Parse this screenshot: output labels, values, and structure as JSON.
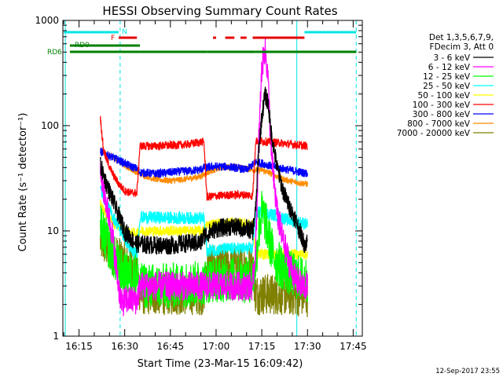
{
  "chart_data": {
    "type": "line",
    "title": "HESSI Observing Summary Count Rates",
    "xlabel": "Start Time (23-Mar-15 16:09:42)",
    "ylabel": "Count Rate (s⁻¹ detector⁻¹)",
    "y_scale": "log",
    "ylim": [
      1,
      1000
    ],
    "xlim": [
      "16:09:42",
      "17:48:00"
    ],
    "x_ticks": [
      "16:15",
      "16:30",
      "16:45",
      "17:00",
      "17:15",
      "17:30",
      "17:45"
    ],
    "y_ticks": [
      "1",
      "10",
      "100",
      "1000"
    ],
    "timestamp": "12-Sep-2017 23:55",
    "legend_header": [
      "Det 1,3,5,6,7,9,",
      "FDecim 3, Att 0"
    ],
    "legend_position": "right, outside plot",
    "flags": [
      {
        "label": "N",
        "color": "#00e6e6",
        "intervals": [
          [
            "16:10",
            "16:28"
          ],
          [
            "17:29",
            "17:46"
          ]
        ]
      },
      {
        "label": "F",
        "color": "#e60000",
        "intervals": [
          [
            "16:28",
            "16:34"
          ],
          [
            "17:12",
            "17:29"
          ],
          [
            "16:59",
            "17:00"
          ],
          [
            "17:03",
            "17:06"
          ],
          [
            "17:08",
            "17:10"
          ]
        ]
      },
      {
        "label": "RD0",
        "color": "#008000",
        "intervals": [
          [
            "16:12",
            "16:35"
          ]
        ]
      },
      {
        "label": "RD6",
        "color": "#008000",
        "intervals": [
          [
            "16:12",
            "16:35"
          ],
          [
            "16:35",
            "16:57"
          ],
          [
            "16:57",
            "17:13"
          ],
          [
            "17:13",
            "17:46"
          ]
        ]
      }
    ],
    "vlines": [
      {
        "time": "16:10:30",
        "color": "#00e6e6",
        "style": "solid"
      },
      {
        "time": "16:28:30",
        "color": "#00e6e6",
        "style": "dashed"
      },
      {
        "time": "17:26:30",
        "color": "#00e6e6",
        "style": "solid"
      },
      {
        "time": "17:46:00",
        "color": "#00e6e6",
        "style": "dashed"
      }
    ],
    "series": [
      {
        "name": "3 - 6 keV",
        "color": "#000000",
        "points": [
          [
            "16:22",
            42
          ],
          [
            "16:24",
            28
          ],
          [
            "16:26",
            20
          ],
          [
            "16:28",
            14
          ],
          [
            "16:30",
            10
          ],
          [
            "16:32",
            8.5
          ],
          [
            "16:34",
            7.5
          ],
          [
            "16:35",
            7.5
          ],
          [
            "16:40",
            7.3
          ],
          [
            "16:45",
            7.3
          ],
          [
            "16:50",
            7.6
          ],
          [
            "16:55",
            7.7
          ],
          [
            "16:56",
            9.0
          ],
          [
            "17:00",
            10.5
          ],
          [
            "17:05",
            11
          ],
          [
            "17:10",
            10.5
          ],
          [
            "17:12",
            10
          ],
          [
            "17:13",
            16
          ],
          [
            "17:14",
            60
          ],
          [
            "17:15",
            120
          ],
          [
            "17:16",
            195
          ],
          [
            "17:17",
            170
          ],
          [
            "17:18",
            90
          ],
          [
            "17:20",
            40
          ],
          [
            "17:22",
            24
          ],
          [
            "17:24",
            17
          ],
          [
            "17:26",
            13
          ],
          [
            "17:28",
            9
          ],
          [
            "17:29",
            7.5
          ],
          [
            "17:30",
            8
          ]
        ]
      },
      {
        "name": "6 - 12 keV",
        "color": "#ff00ff",
        "points": [
          [
            "16:22",
            35
          ],
          [
            "16:24",
            18
          ],
          [
            "16:26",
            9
          ],
          [
            "16:27",
            5
          ],
          [
            "16:28",
            3
          ],
          [
            "16:29",
            2
          ],
          [
            "16:30",
            2.2
          ],
          [
            "16:34",
            2.2
          ],
          [
            "16:35",
            3.0
          ],
          [
            "16:45",
            3.0
          ],
          [
            "16:56",
            3.0
          ],
          [
            "16:57",
            3.0
          ],
          [
            "17:05",
            3.0
          ],
          [
            "17:12",
            3.0
          ],
          [
            "17:13",
            7
          ],
          [
            "17:14",
            70
          ],
          [
            "17:15",
            350
          ],
          [
            "17:16",
            540
          ],
          [
            "17:17",
            300
          ],
          [
            "17:18",
            60
          ],
          [
            "17:20",
            15
          ],
          [
            "17:22",
            8
          ],
          [
            "17:24",
            5
          ],
          [
            "17:26",
            3.5
          ],
          [
            "17:28",
            3
          ],
          [
            "17:30",
            3
          ]
        ]
      },
      {
        "name": "12 - 25 keV",
        "color": "#00ff00",
        "points": [
          [
            "16:22",
            11
          ],
          [
            "16:24",
            8
          ],
          [
            "16:26",
            6
          ],
          [
            "16:28",
            4.5
          ],
          [
            "16:30",
            3.8
          ],
          [
            "16:34",
            3.8
          ],
          [
            "16:35",
            3.0
          ],
          [
            "16:45",
            3.0
          ],
          [
            "16:56",
            3.2
          ],
          [
            "16:57",
            3.4
          ],
          [
            "17:05",
            3.5
          ],
          [
            "17:12",
            3.4
          ],
          [
            "17:13",
            5
          ],
          [
            "17:14",
            10
          ],
          [
            "17:15",
            15
          ],
          [
            "17:16",
            13
          ],
          [
            "17:18",
            7
          ],
          [
            "17:20",
            5
          ],
          [
            "17:24",
            4.0
          ],
          [
            "17:28",
            3.5
          ],
          [
            "17:30",
            3.5
          ]
        ]
      },
      {
        "name": "25 - 50 keV",
        "color": "#00ffff",
        "points": [
          [
            "16:22",
            25
          ],
          [
            "16:24",
            18
          ],
          [
            "16:26",
            14
          ],
          [
            "16:28",
            11
          ],
          [
            "16:30",
            8.5
          ],
          [
            "16:32",
            6.5
          ],
          [
            "16:34",
            6.0
          ],
          [
            "16:35",
            13.5
          ],
          [
            "16:45",
            13.3
          ],
          [
            "16:56",
            13.2
          ],
          [
            "16:57",
            6.5
          ],
          [
            "17:05",
            6.8
          ],
          [
            "17:12",
            6.8
          ],
          [
            "17:13",
            15
          ],
          [
            "17:15",
            15
          ],
          [
            "17:20",
            14
          ],
          [
            "17:24",
            12.5
          ],
          [
            "17:28",
            12
          ],
          [
            "17:30",
            11.5
          ]
        ]
      },
      {
        "name": "50 - 100 keV",
        "color": "#ffff00",
        "points": [
          [
            "16:22",
            18
          ],
          [
            "16:24",
            14
          ],
          [
            "16:26",
            12
          ],
          [
            "16:28",
            11
          ],
          [
            "16:30",
            10
          ],
          [
            "16:32",
            9.5
          ],
          [
            "16:34",
            9.5
          ],
          [
            "16:35",
            10
          ],
          [
            "16:45",
            10
          ],
          [
            "16:56",
            10
          ],
          [
            "16:57",
            11.5
          ],
          [
            "17:05",
            12
          ],
          [
            "17:12",
            11.5
          ],
          [
            "17:13",
            6
          ],
          [
            "17:20",
            6
          ],
          [
            "17:30",
            6
          ]
        ]
      },
      {
        "name": "100 - 300 keV",
        "color": "#ff0000",
        "points": [
          [
            "16:22",
            120
          ],
          [
            "16:23",
            60
          ],
          [
            "16:24",
            48
          ],
          [
            "16:26",
            35
          ],
          [
            "16:28",
            28
          ],
          [
            "16:30",
            24
          ],
          [
            "16:32",
            23
          ],
          [
            "16:34",
            23
          ],
          [
            "16:35",
            64
          ],
          [
            "16:40",
            64
          ],
          [
            "16:45",
            65
          ],
          [
            "16:50",
            66
          ],
          [
            "16:55",
            70
          ],
          [
            "16:56",
            70
          ],
          [
            "16:57",
            21
          ],
          [
            "17:00",
            21.5
          ],
          [
            "17:05",
            22
          ],
          [
            "17:10",
            22
          ],
          [
            "17:12",
            21.5
          ],
          [
            "17:13",
            72
          ],
          [
            "17:18",
            70
          ],
          [
            "17:22",
            68
          ],
          [
            "17:26",
            66
          ],
          [
            "17:28",
            65
          ],
          [
            "17:30",
            64
          ]
        ]
      },
      {
        "name": "300 - 800 keV",
        "color": "#0000ff",
        "points": [
          [
            "16:22",
            57
          ],
          [
            "16:24",
            53
          ],
          [
            "16:26",
            50
          ],
          [
            "16:28",
            47
          ],
          [
            "16:30",
            44
          ],
          [
            "16:32",
            41
          ],
          [
            "16:34",
            39
          ],
          [
            "16:35",
            36
          ],
          [
            "16:40",
            35
          ],
          [
            "16:45",
            36
          ],
          [
            "16:50",
            37
          ],
          [
            "16:55",
            38
          ],
          [
            "16:56",
            40
          ],
          [
            "16:57",
            40
          ],
          [
            "17:00",
            41
          ],
          [
            "17:05",
            40.5
          ],
          [
            "17:10",
            38
          ],
          [
            "17:13",
            45
          ],
          [
            "17:15",
            44
          ],
          [
            "17:20",
            40
          ],
          [
            "17:24",
            38
          ],
          [
            "17:28",
            36
          ],
          [
            "17:30",
            35
          ]
        ]
      },
      {
        "name": "800 - 7000 keV",
        "color": "#ff8c00",
        "points": [
          [
            "16:22",
            58
          ],
          [
            "16:24",
            54
          ],
          [
            "16:26",
            50
          ],
          [
            "16:28",
            46
          ],
          [
            "16:30",
            42
          ],
          [
            "16:32",
            39
          ],
          [
            "16:34",
            36
          ],
          [
            "16:36",
            34
          ],
          [
            "16:40",
            31
          ],
          [
            "16:45",
            30
          ],
          [
            "16:50",
            31
          ],
          [
            "16:55",
            33
          ],
          [
            "16:58",
            37
          ],
          [
            "17:02",
            40
          ],
          [
            "17:06",
            41
          ],
          [
            "17:10",
            39
          ],
          [
            "17:13",
            38
          ],
          [
            "17:15",
            38
          ],
          [
            "17:18",
            35
          ],
          [
            "17:22",
            31
          ],
          [
            "17:26",
            29
          ],
          [
            "17:30",
            28
          ]
        ]
      },
      {
        "name": "7000 - 20000 keV",
        "color": "#808000",
        "points": [
          [
            "16:22",
            8
          ],
          [
            "16:24",
            7
          ],
          [
            "16:26",
            6
          ],
          [
            "16:28",
            5.5
          ],
          [
            "16:30",
            5.0
          ],
          [
            "16:34",
            4.7
          ],
          [
            "16:35",
            2.5
          ],
          [
            "16:45",
            2.5
          ],
          [
            "16:56",
            2.5
          ],
          [
            "16:57",
            4.6
          ],
          [
            "17:05",
            4.7
          ],
          [
            "17:12",
            4.6
          ],
          [
            "17:13",
            2.5
          ],
          [
            "17:20",
            2.5
          ],
          [
            "17:30",
            2.4
          ]
        ]
      }
    ]
  }
}
